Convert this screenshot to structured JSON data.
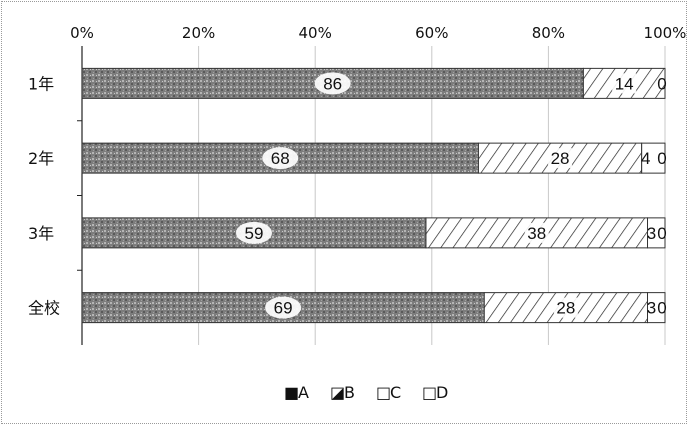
{
  "chart_data": {
    "type": "bar",
    "orientation": "horizontal",
    "stacked": true,
    "percent_stacked": true,
    "categories": [
      "1年",
      "2年",
      "3年",
      "全校"
    ],
    "series": [
      {
        "name": "A",
        "values": [
          86,
          68,
          59,
          69
        ],
        "labels": [
          "86",
          "68",
          "59",
          "69"
        ],
        "fill": "gray-pattern",
        "color": "#8c8c8c"
      },
      {
        "name": "B",
        "values": [
          14,
          28,
          38,
          28
        ],
        "labels": [
          "14",
          "28",
          "38",
          "28"
        ],
        "fill": "hatch",
        "color": "#ffffff"
      },
      {
        "name": "C",
        "values": [
          0,
          4,
          3,
          3
        ],
        "labels": [
          "0",
          "4",
          "3",
          "3"
        ],
        "fill": "white",
        "color": "#ffffff"
      },
      {
        "name": "D",
        "values": [
          0,
          0,
          0,
          0
        ],
        "labels": [
          "",
          "0",
          "0",
          "0"
        ],
        "fill": "white",
        "color": "#ffffff"
      }
    ],
    "x_ticks": [
      "0%",
      "20%",
      "40%",
      "60%",
      "80%",
      "100%"
    ],
    "xlim": [
      0,
      100
    ],
    "x_axis_position": "top",
    "grid": true,
    "legend_position": "bottom",
    "legend": [
      {
        "symbol": "■",
        "label": "A"
      },
      {
        "symbol": "◪",
        "label": "B"
      },
      {
        "symbol": "□",
        "label": "C"
      },
      {
        "symbol": "□",
        "label": "D"
      }
    ]
  }
}
